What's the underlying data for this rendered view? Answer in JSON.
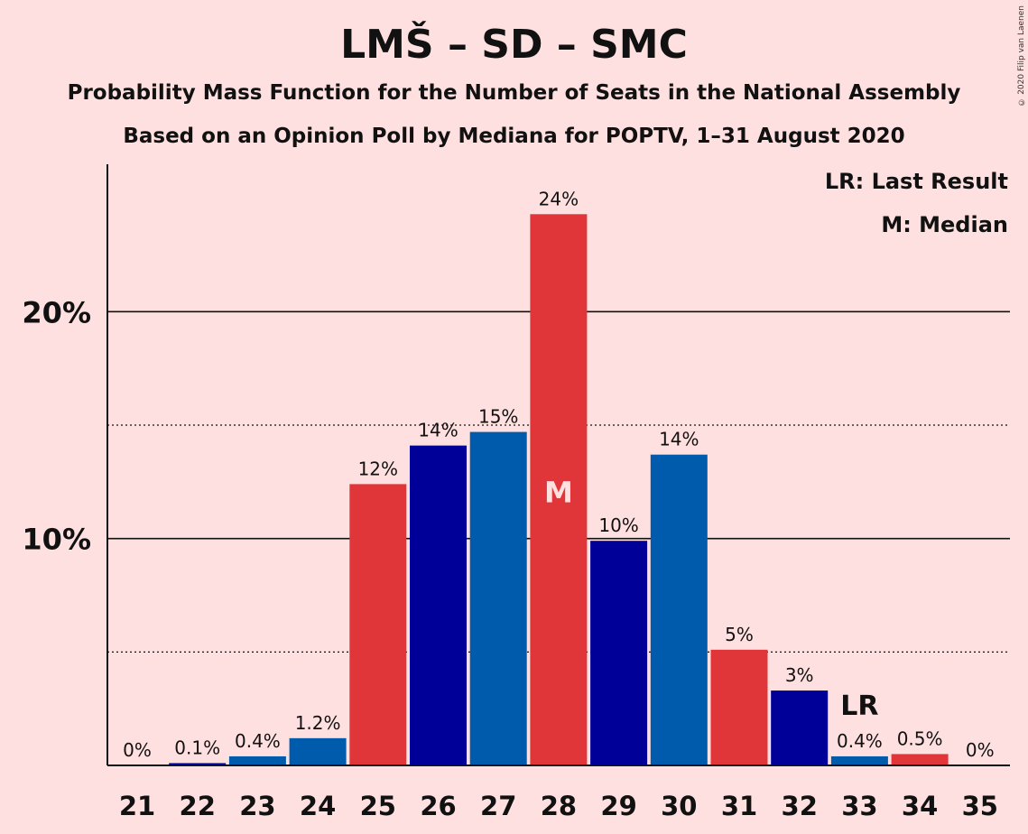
{
  "title": "LMŠ – SD – SMC",
  "subtitle1": "Probability Mass Function for the Number of Seats in the National Assembly",
  "subtitle2": "Based on an Opinion Poll by Mediana for POPTV, 1–31 August 2020",
  "copyright": "© 2020 Filip van Laenen",
  "legend": {
    "lr": "LR: Last Result",
    "m": "M: Median"
  },
  "markers": {
    "lr_label": "LR",
    "lr_seat": 33,
    "median_label": "M",
    "median_seat": 28
  },
  "colors": {
    "background": "#FFE0E0",
    "red": "#E0363A",
    "darkblue": "#000099",
    "blue": "#005BAC"
  },
  "chart_data": {
    "type": "bar",
    "title": "LMŠ – SD – SMC",
    "xlabel": "",
    "ylabel": "",
    "ylim": [
      0,
      26.5
    ],
    "y_ticks": [
      {
        "value": 10,
        "label": "10%"
      },
      {
        "value": 20,
        "label": "20%"
      }
    ],
    "minor_gridlines": [
      5,
      15
    ],
    "categories": [
      "21",
      "22",
      "23",
      "24",
      "25",
      "26",
      "27",
      "28",
      "29",
      "30",
      "31",
      "32",
      "33",
      "34",
      "35"
    ],
    "values": [
      0,
      0.1,
      0.4,
      1.2,
      12.4,
      14.1,
      14.7,
      24.3,
      9.9,
      13.7,
      5.1,
      3.3,
      0.4,
      0.5,
      0
    ],
    "labels": [
      "0%",
      "0.1%",
      "0.4%",
      "1.2%",
      "12%",
      "14%",
      "15%",
      "24%",
      "10%",
      "14%",
      "5%",
      "3%",
      "0.4%",
      "0.5%",
      "0%"
    ],
    "bar_colors": [
      "red",
      "darkblue",
      "blue",
      "blue",
      "red",
      "darkblue",
      "blue",
      "red",
      "darkblue",
      "blue",
      "red",
      "darkblue",
      "blue",
      "red",
      "darkblue"
    ]
  }
}
